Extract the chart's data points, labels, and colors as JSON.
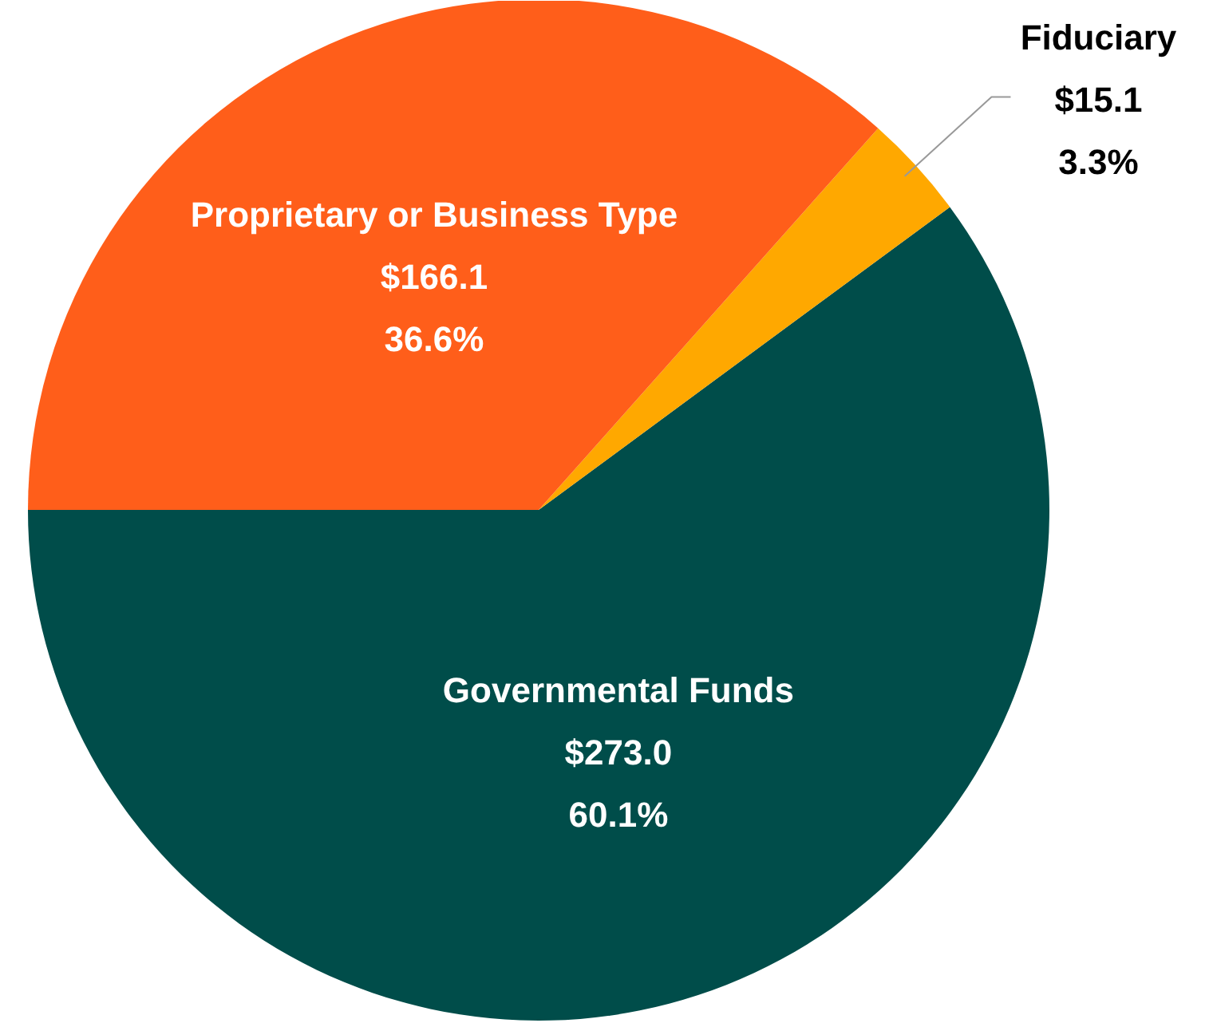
{
  "chart_data": {
    "type": "pie",
    "categories": [
      "Governmental Funds",
      "Fiduciary",
      "Proprietary or Business Type"
    ],
    "values": [
      273.0,
      15.1,
      166.1
    ],
    "colors": [
      "#004d4a",
      "#ffa800",
      "#ff5e1a"
    ],
    "value_labels": [
      "$273.0\n60.1%",
      "$15.1\n3.3%",
      "$166.1\n36.6%"
    ]
  }
}
